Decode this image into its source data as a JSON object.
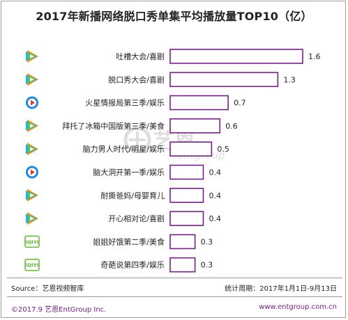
{
  "chart_data": {
    "type": "bar",
    "orientation": "horizontal",
    "title": "2017年新播网络脱口秀单集平均播放量TOP10（亿）",
    "categories": [
      "吐槽大会/喜剧",
      "脱口秀大会/喜剧",
      "火星情报局第三季/娱乐",
      "拜托了冰箱中国版第三季/美食",
      "脑力男人时代/明星/娱乐",
      "脑大洞开第一季/娱乐",
      "耐撕爸妈/母婴育儿",
      "开心相对论/喜剧",
      "姐姐好饿第二季/美食",
      "奇葩说第四季/娱乐"
    ],
    "values": [
      1.6,
      1.3,
      0.7,
      0.6,
      0.5,
      0.4,
      0.4,
      0.4,
      0.3,
      0.3
    ],
    "value_labels": [
      "1.6",
      "1.3",
      "0.7",
      "0.6",
      "0.5",
      "0.4",
      "0.4",
      "0.4",
      "0.3",
      "0.3"
    ],
    "platforms": [
      "tencent",
      "tencent",
      "youku",
      "tencent",
      "tencent",
      "youku",
      "tencent",
      "tencent",
      "iqiyi",
      "iqiyi"
    ],
    "xlim": [
      0,
      1.6
    ],
    "grid": false,
    "legend": "none",
    "bar_fill": "#ffffff",
    "bar_stroke": "#7a1c8e"
  },
  "platform_icons": {
    "tencent": {
      "icon": "tencent-video-icon",
      "colors": [
        "#ff8a00",
        "#1fb6e8",
        "#4cc94c"
      ]
    },
    "youku": {
      "icon": "youku-icon",
      "colors": [
        "#1e88e5",
        "#e53935"
      ]
    },
    "iqiyi": {
      "icon": "iqiyi-icon",
      "text": "iQIYI",
      "color": "#5fb832"
    }
  },
  "watermark": {
    "text_cn": "艺恩",
    "text_en": "entgroup",
    "color": "#d9d9d9"
  },
  "footer": {
    "source": "Source：艺恩视频智库",
    "period": "统计周期：2017年1月1日-9月13日",
    "copyright": "©2017.9  艺恩EntGroup Inc.",
    "website": "www.entgroup.com.cn"
  }
}
